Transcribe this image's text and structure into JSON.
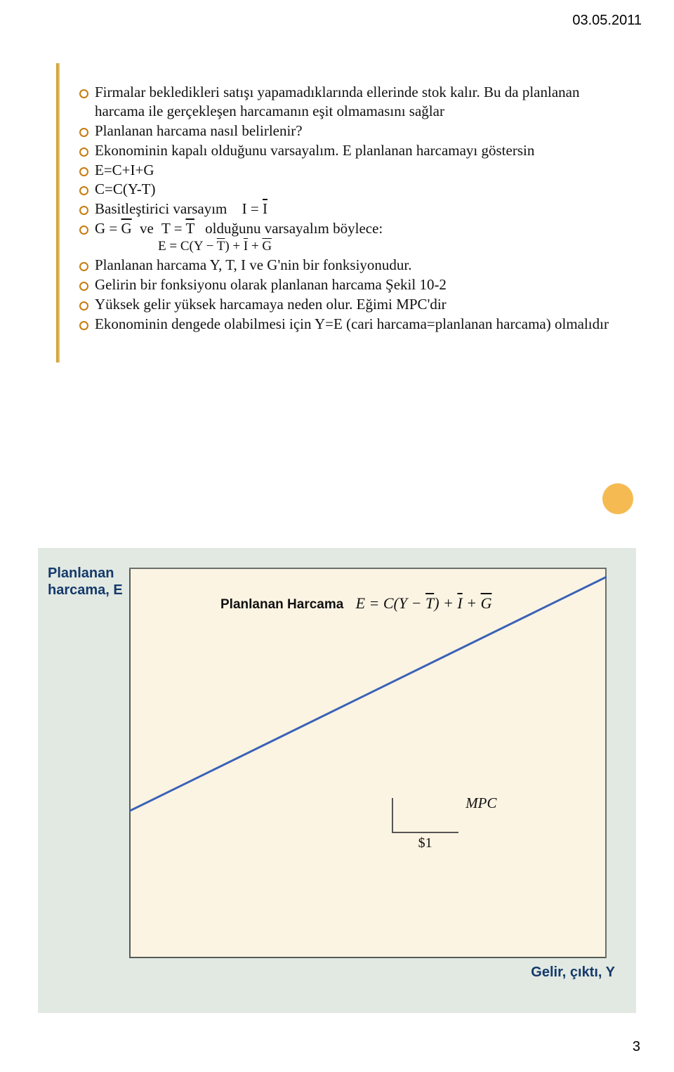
{
  "meta": {
    "date": "03.05.2011",
    "page_number": "3"
  },
  "colors": {
    "page_bg": "#ffffff",
    "slide_border_outer": "#d6a23a",
    "slide_border_inner": "#e2c068",
    "bullet_ring": "#c77b0e",
    "chart_bg_outer": "#e2e9e2",
    "chart_bg_inner": "#fcf4e3",
    "axis_color": "#555b55",
    "axis_label_color": "#143a6b",
    "line_color": "#3a62b6",
    "dot_color": "#f5bb52",
    "text_color": "#111111"
  },
  "bullets": {
    "b1": "Firmalar bekledikleri satışı yapamadıklarında ellerinde stok kalır. Bu da planlanan harcama ile gerçekleşen harcamanın eşit olmamasını sağlar",
    "b2": "Planlanan harcama nasıl belirlenir?",
    "b3": "Ekonominin kapalı olduğunu varsayalım. E planlanan harcamayı göstersin",
    "b4": "E=C+I+G",
    "b5": "C=C(Y-T)",
    "b6_pre": "Basitleştirici varsayım",
    "b6_math_lhs": "I",
    "b6_math_rhs": "I",
    "b7_g": "G",
    "b7_gbar": "G",
    "b7_ve": "ve",
    "b7_t": "T",
    "b7_tbar": "T",
    "b7_tail": "olduğunu varsayalım böylece:",
    "b7_eq_pre": "E = C(Y − ",
    "b7_eq_t": "T",
    "b7_eq_mid": ") + ",
    "b7_eq_i": "I",
    "b7_eq_mid2": " + ",
    "b7_eq_g": "G",
    "b8": "Planlanan harcama Y, T, I ve G'nin bir fonksiyonudur.",
    "b9": "Gelirin bir fonksiyonu olarak planlanan harcama Şekil 10-2",
    "b10": "Yüksek gelir yüksek harcamaya neden olur. Eğimi MPC'dir",
    "b11": "Ekonominin dengede olabilmesi için Y=E (cari harcama=planlanan harcama) olmalıdır"
  },
  "chart": {
    "y_axis_label_line1": "Planlanan",
    "y_axis_label_line2": "harcama, E",
    "x_axis_label": "Gelir, çıktı, Y",
    "title_bold": "Planlanan Harcama",
    "title_eq_pre": "E = C(Y − ",
    "title_eq_t": "T",
    "title_eq_mid": ") + ",
    "title_eq_i": "I",
    "title_eq_mid2": " + ",
    "title_eq_g": "G",
    "mpc_label": "MPC",
    "dollar_label": "$1",
    "line": {
      "x1_pct": 0,
      "y1_pct": 62,
      "x2_pct": 100,
      "y2_pct": 2,
      "stroke_width": 3
    },
    "mpc_box": {
      "left_pct": 55,
      "bottom_pct": 32,
      "width_pct": 14,
      "height_pct": 9
    }
  }
}
